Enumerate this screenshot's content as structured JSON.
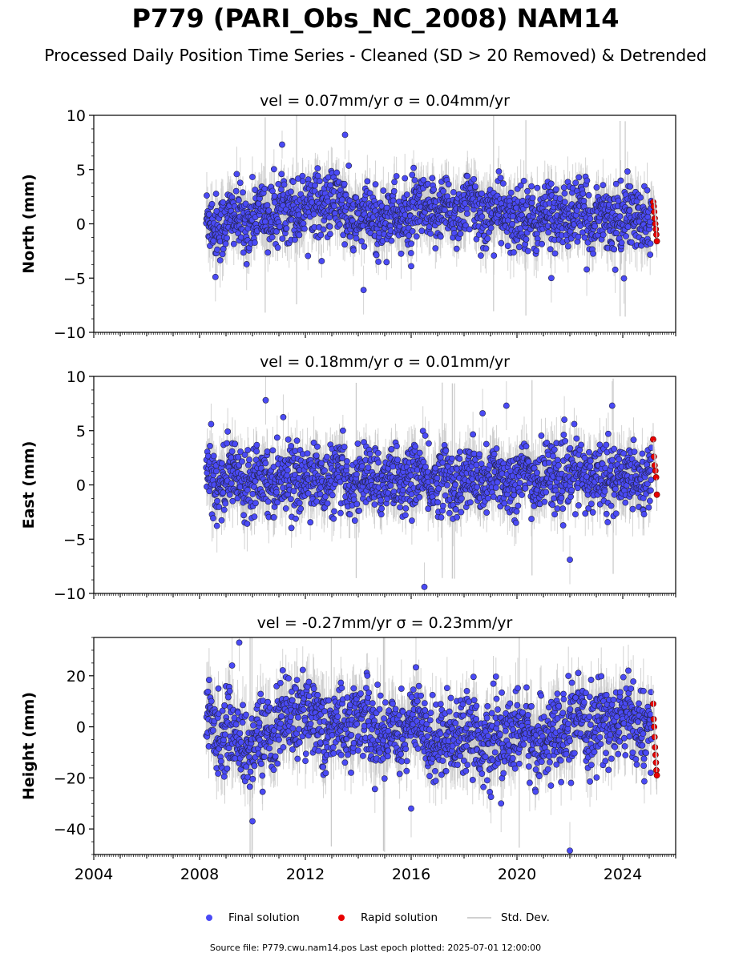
{
  "title": "P779 (PARI_Obs_NC_2008) NAM14",
  "subtitle": "Processed Daily Position Time Series - Cleaned (SD > 20 Removed) & Detrended",
  "legend": {
    "final_label": "Final solution",
    "rapid_label": "Rapid solution",
    "std_label": "Std. Dev."
  },
  "source_text": "Source file: P779.cwu.nam14.pos  Last epoch plotted: 2025-07-01 12:00:00",
  "colors": {
    "final": "#4a4af5",
    "rapid": "#e80000",
    "std": "#c8c8c8",
    "edge": "#222244"
  },
  "chart_data": [
    {
      "type": "scatter",
      "panel": "north",
      "title": "vel = 0.07mm/yr   σ = 0.04mm/yr",
      "ylabel": "North (mm)",
      "ylim": [
        -10,
        10
      ],
      "yticks": [
        -10,
        -5,
        0,
        5,
        10
      ],
      "ytick_labels": [
        "−10",
        "−5",
        "0",
        "5",
        "10"
      ],
      "xlim": [
        2004.0,
        2026.0
      ],
      "data_start": 2008.25,
      "data_end": 2025.1,
      "rapid_start": 2025.15,
      "rapid_end": 2025.5,
      "typical_spread_sd": 1.5,
      "approx_mean_by_year": [
        [
          2008.3,
          0.0
        ],
        [
          2010.0,
          0.5
        ],
        [
          2012.0,
          1.8
        ],
        [
          2013.0,
          2.0
        ],
        [
          2014.0,
          0.2
        ],
        [
          2016.0,
          0.8
        ],
        [
          2018.0,
          1.5
        ],
        [
          2020.0,
          0.5
        ],
        [
          2022.0,
          0.8
        ],
        [
          2025.0,
          0.3
        ]
      ],
      "notable_points": [
        [
          2013.5,
          8.2
        ],
        [
          2014.2,
          -6.1
        ],
        [
          2008.6,
          -4.9
        ],
        [
          2016.0,
          -3.9
        ],
        [
          2021.3,
          -5.0
        ]
      ],
      "rapid_values": [
        2.0,
        1.6,
        1.1,
        0.5,
        0.0,
        -0.5,
        -1.0,
        -1.6
      ]
    },
    {
      "type": "scatter",
      "panel": "east",
      "title": "vel = 0.18mm/yr   σ = 0.01mm/yr",
      "ylabel": "East (mm)",
      "ylim": [
        -10,
        10
      ],
      "yticks": [
        -10,
        -5,
        0,
        5,
        10
      ],
      "ytick_labels": [
        "−10",
        "−5",
        "0",
        "5",
        "10"
      ],
      "xlim": [
        2004.0,
        2026.0
      ],
      "data_start": 2008.25,
      "data_end": 2025.1,
      "rapid_start": 2025.15,
      "rapid_end": 2025.5,
      "typical_spread_sd": 1.5,
      "approx_mean_by_year": [
        [
          2008.3,
          0.5
        ],
        [
          2010.0,
          0.8
        ],
        [
          2012.0,
          0.6
        ],
        [
          2014.0,
          0.4
        ],
        [
          2016.0,
          0.6
        ],
        [
          2018.0,
          0.3
        ],
        [
          2020.0,
          0.6
        ],
        [
          2022.0,
          0.8
        ],
        [
          2025.0,
          0.8
        ]
      ],
      "notable_points": [
        [
          2010.5,
          7.8
        ],
        [
          2016.5,
          -9.4
        ],
        [
          2022.0,
          -6.9
        ],
        [
          2023.6,
          7.3
        ],
        [
          2019.6,
          7.3
        ],
        [
          2018.7,
          6.6
        ]
      ],
      "rapid_values": [
        4.2,
        2.6,
        1.8,
        1.3,
        0.7,
        -0.9
      ]
    },
    {
      "type": "scatter",
      "panel": "height",
      "title": "vel = -0.27mm/yr   σ = 0.23mm/yr",
      "ylabel": "Height (mm)",
      "ylim": [
        -50,
        35
      ],
      "yticks": [
        -40,
        -20,
        0,
        20
      ],
      "ytick_labels": [
        "−40",
        "−20",
        "0",
        "20"
      ],
      "xlim": [
        2004.0,
        2026.0
      ],
      "data_start": 2008.25,
      "data_end": 2025.1,
      "rapid_start": 2025.15,
      "rapid_end": 2025.5,
      "typical_spread_sd": 7.5,
      "approx_mean_by_year": [
        [
          2008.3,
          2.0
        ],
        [
          2009.0,
          -2.0
        ],
        [
          2010.0,
          -8.0
        ],
        [
          2011.0,
          2.0
        ],
        [
          2012.0,
          6.0
        ],
        [
          2013.0,
          -2.0
        ],
        [
          2014.0,
          4.0
        ],
        [
          2015.0,
          -4.0
        ],
        [
          2016.0,
          2.0
        ],
        [
          2017.0,
          -6.0
        ],
        [
          2018.0,
          0.0
        ],
        [
          2019.0,
          -8.0
        ],
        [
          2020.0,
          -2.0
        ],
        [
          2021.0,
          -6.0
        ],
        [
          2022.0,
          0.0
        ],
        [
          2023.0,
          0.0
        ],
        [
          2024.0,
          4.0
        ],
        [
          2025.0,
          -2.0
        ]
      ],
      "notable_points": [
        [
          2009.5,
          33.0
        ],
        [
          2010.0,
          -37.0
        ],
        [
          2022.0,
          -48.5
        ],
        [
          2016.0,
          -32.0
        ],
        [
          2019.4,
          -30.0
        ]
      ],
      "rapid_values": [
        9.0,
        3.0,
        0.0,
        -4.0,
        -8.0,
        -11.0,
        -14.0,
        -17.0,
        -19.0
      ]
    }
  ],
  "x_axis": {
    "tick_years": [
      2004,
      2008,
      2012,
      2016,
      2020,
      2024
    ],
    "tick_labels": [
      "2004",
      "2008",
      "2012",
      "2016",
      "2020",
      "2024"
    ]
  }
}
